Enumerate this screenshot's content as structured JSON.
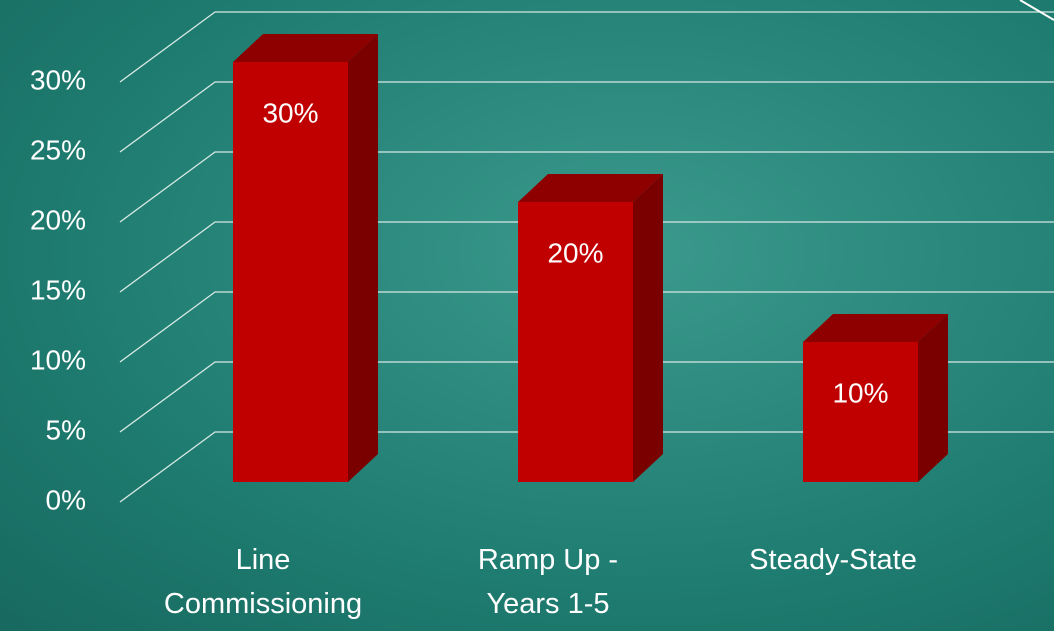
{
  "chart_data": {
    "type": "bar3d",
    "categories": [
      "Line Commissioning",
      "Ramp Up - Years 1-5",
      "Steady-State"
    ],
    "values": [
      30,
      20,
      10
    ],
    "value_labels": [
      "30%",
      "20%",
      "10%"
    ],
    "color": "#c00000",
    "ylim": [
      0,
      30
    ],
    "yticks": [
      {
        "value": 0,
        "label": "0%"
      },
      {
        "value": 5,
        "label": "5%"
      },
      {
        "value": 10,
        "label": "10%"
      },
      {
        "value": 15,
        "label": "15%"
      },
      {
        "value": 20,
        "label": "20%"
      },
      {
        "value": 25,
        "label": "25%"
      },
      {
        "value": 30,
        "label": "30%"
      }
    ],
    "grid": true
  }
}
